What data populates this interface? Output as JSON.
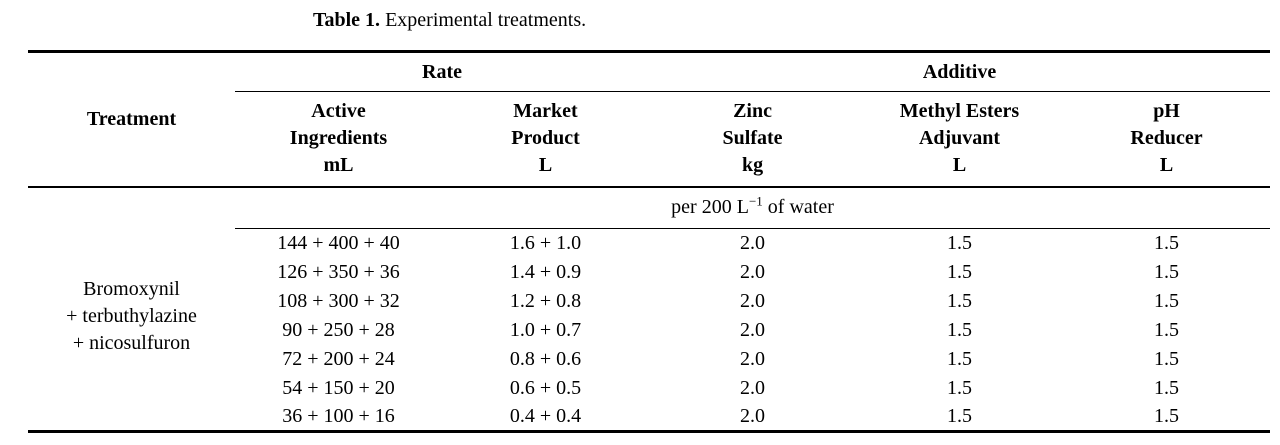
{
  "caption": {
    "label": "Table 1.",
    "text": "Experimental treatments."
  },
  "table": {
    "treatment_header": "Treatment",
    "group_headers": {
      "rate": "Rate",
      "additive": "Additive"
    },
    "column_headers": [
      {
        "l1": "Active",
        "l2": "Ingredients",
        "l3": "mL"
      },
      {
        "l1": "Market",
        "l2": "Product",
        "l3": "L"
      },
      {
        "l1": "Zinc",
        "l2": "Sulfate",
        "l3": "kg"
      },
      {
        "l1": "Methyl Esters",
        "l2": "Adjuvant",
        "l3": "L"
      },
      {
        "l1": "pH",
        "l2": "Reducer",
        "l3": "L"
      }
    ],
    "unit_row": {
      "prefix": "per 200 L",
      "sup": "−1",
      "suffix": " of water"
    },
    "treatment": {
      "line1": "Bromoxynil",
      "line2": "+ terbuthylazine",
      "line3": "+ nicosulfuron"
    },
    "rows": [
      [
        "144 + 400 + 40",
        "1.6 + 1.0",
        "2.0",
        "1.5",
        "1.5"
      ],
      [
        "126 + 350 + 36",
        "1.4 + 0.9",
        "2.0",
        "1.5",
        "1.5"
      ],
      [
        "108 + 300 + 32",
        "1.2 + 0.8",
        "2.0",
        "1.5",
        "1.5"
      ],
      [
        "90 + 250 + 28",
        "1.0 + 0.7",
        "2.0",
        "1.5",
        "1.5"
      ],
      [
        "72 + 200 + 24",
        "0.8 + 0.6",
        "2.0",
        "1.5",
        "1.5"
      ],
      [
        "54 + 150 + 20",
        "0.6 + 0.5",
        "2.0",
        "1.5",
        "1.5"
      ],
      [
        "36 + 100 + 16",
        "0.4 + 0.4",
        "2.0",
        "1.5",
        "1.5"
      ]
    ]
  },
  "colors": {
    "text": "#000000",
    "rule": "#000000",
    "background": "#ffffff"
  }
}
